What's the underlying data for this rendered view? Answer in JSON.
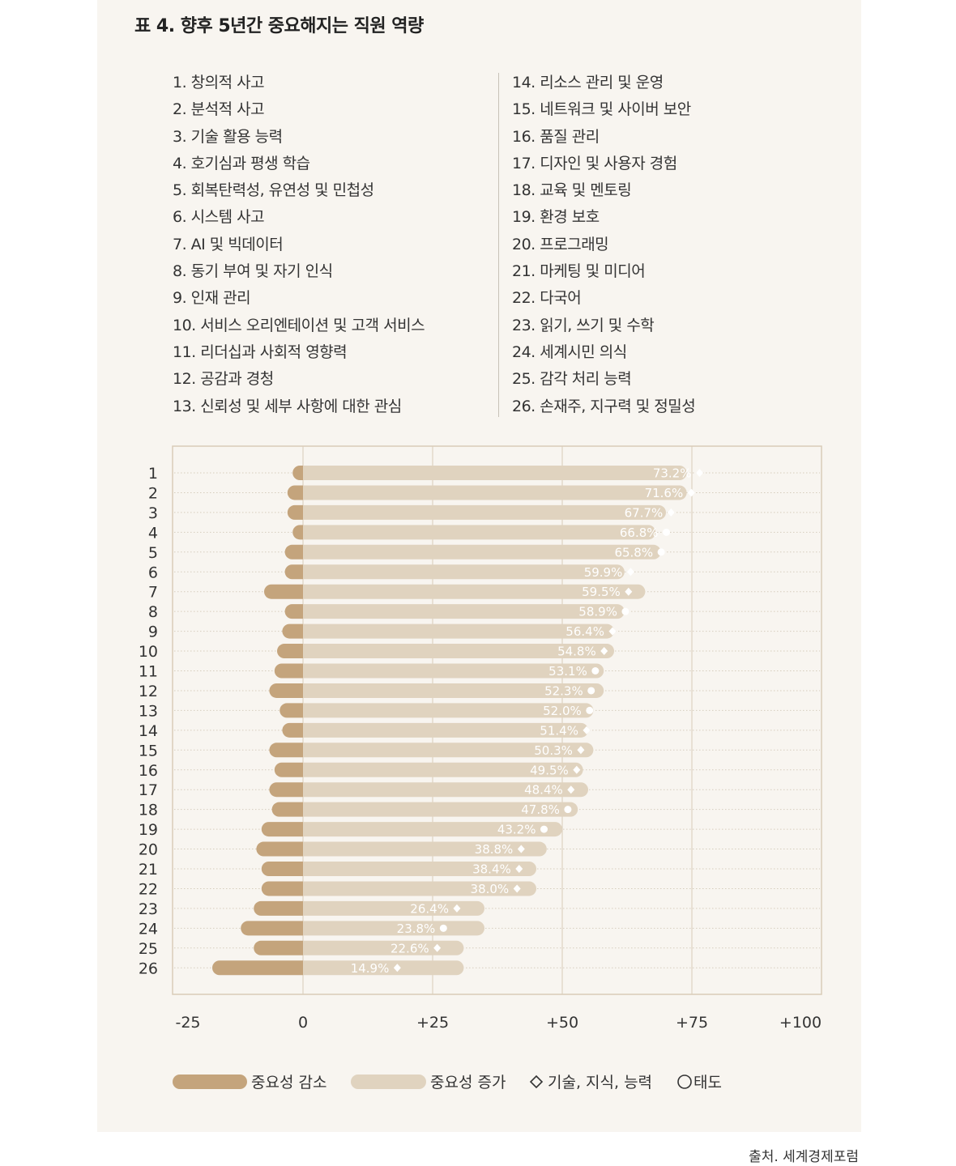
{
  "title": "표 4. 향후 5년간 중요해지는 직원 역량",
  "source": "출처. 세계경제포럼",
  "skills_left": [
    "1. 창의적 사고",
    "2. 분석적 사고",
    "3. 기술 활용 능력",
    "4. 호기심과 평생 학습",
    "5. 회복탄력성, 유연성 및 민첩성",
    "6. 시스템 사고",
    "7. AI 및 빅데이터",
    "8. 동기 부여 및 자기 인식",
    "9. 인재 관리",
    "10. 서비스 오리엔테이션 및 고객 서비스",
    "11. 리더십과 사회적 영향력",
    "12. 공감과 경청",
    "13. 신뢰성 및 세부 사항에 대한 관심"
  ],
  "skills_right": [
    "14. 리소스 관리 및 운영",
    "15. 네트워크 및 사이버 보안",
    "16. 품질 관리",
    "17. 디자인 및 사용자 경험",
    "18. 교육 및 멘토링",
    "19. 환경 보호",
    "20. 프로그래밍",
    "21. 마케팅 및 미디어",
    "22. 다국어",
    "23. 읽기, 쓰기 및 수학",
    "24. 세계시민 의식",
    "25. 감각 처리 능력",
    "26. 손재주, 지구력 및 정밀성"
  ],
  "chart_data": {
    "type": "bar",
    "orientation": "horizontal-diverging",
    "categories": [
      "1",
      "2",
      "3",
      "4",
      "5",
      "6",
      "7",
      "8",
      "9",
      "10",
      "11",
      "12",
      "13",
      "14",
      "15",
      "16",
      "17",
      "18",
      "19",
      "20",
      "21",
      "22",
      "23",
      "24",
      "25",
      "26"
    ],
    "series": [
      {
        "name": "중요성 감소",
        "color": "#c4a47c",
        "values": [
          -2,
          -3,
          -3,
          -2,
          -3.5,
          -3.5,
          -7.5,
          -3.5,
          -4,
          -5,
          -5.5,
          -6.5,
          -4.5,
          -4,
          -6.5,
          -5.5,
          -6.5,
          -6,
          -8,
          -9,
          -8,
          -8,
          -9.5,
          -12,
          -9.5,
          -17.5
        ]
      },
      {
        "name": "중요성 증가",
        "color": "#e0d3bf",
        "values": [
          74,
          74,
          70,
          68,
          69,
          62,
          66,
          62,
          60,
          60,
          58,
          58,
          56,
          55,
          56,
          54,
          55,
          53,
          50,
          47,
          45,
          45,
          35,
          35,
          31,
          31
        ]
      }
    ],
    "net_values": [
      73.2,
      71.6,
      67.7,
      66.8,
      65.8,
      59.9,
      59.5,
      58.9,
      56.4,
      54.8,
      53.1,
      52.3,
      52.0,
      51.4,
      50.3,
      49.5,
      48.4,
      47.8,
      43.2,
      38.8,
      38.4,
      38.0,
      26.4,
      23.8,
      22.6,
      14.9
    ],
    "labels": [
      "73.2%",
      "71.6%",
      "67.7%",
      "66.8%",
      "65.8%",
      "59.9%",
      "59.5%",
      "58.9%",
      "56.4%",
      "54.8%",
      "53.1%",
      "52.3%",
      "52.0%",
      "51.4%",
      "50.3%",
      "49.5%",
      "48.4%",
      "47.8%",
      "43.2%",
      "38.8%",
      "38.4%",
      "38.0%",
      "26.4%",
      "23.8%",
      "22.6%",
      "14.9%"
    ],
    "markers": [
      "diamond",
      "diamond",
      "diamond",
      "circle",
      "circle",
      "diamond",
      "diamond",
      "circle",
      "diamond",
      "diamond",
      "circle",
      "circle",
      "circle",
      "diamond",
      "diamond",
      "diamond",
      "diamond",
      "circle",
      "circle",
      "diamond",
      "diamond",
      "diamond",
      "diamond",
      "circle",
      "diamond",
      "diamond"
    ],
    "x_ticks": [
      "-25",
      "0",
      "+25",
      "+50",
      "+75",
      "+100"
    ],
    "xlim": [
      -25,
      100
    ],
    "legend": [
      {
        "label": "중요성 감소",
        "kind": "bar-dark"
      },
      {
        "label": "중요성 증가",
        "kind": "bar-light"
      },
      {
        "label": "기술, 지식, 능력",
        "kind": "diamond"
      },
      {
        "label": "태도",
        "kind": "circle"
      }
    ],
    "colors": {
      "decrease": "#c4a47c",
      "increase": "#e0d3bf",
      "label": "#ffffff",
      "axis": "#333333",
      "grid": "#d9ccb8"
    }
  }
}
